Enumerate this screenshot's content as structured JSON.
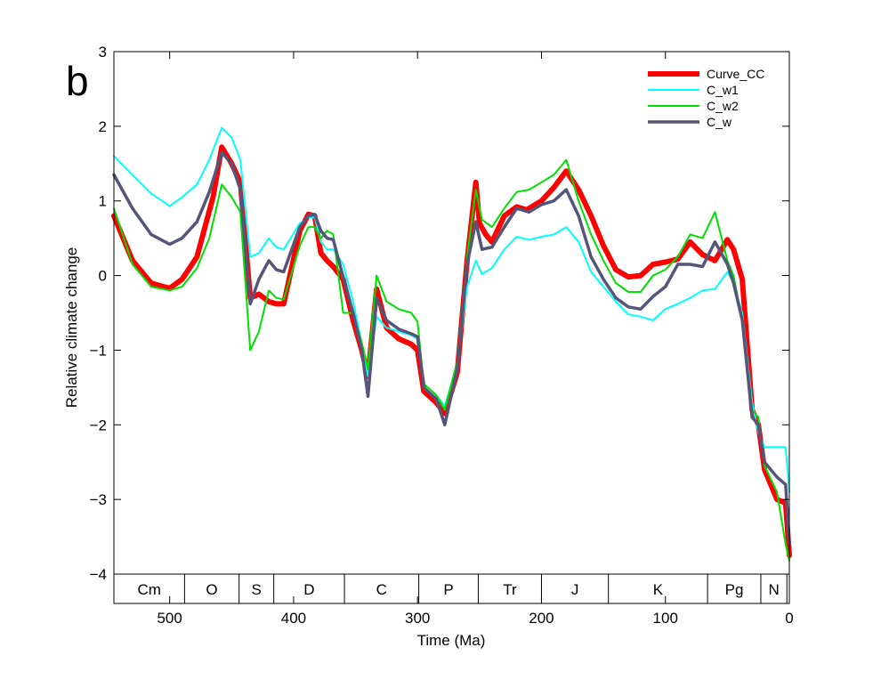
{
  "panel_label": "b",
  "chart_data": {
    "type": "line",
    "xlabel": "Time (Ma)",
    "ylabel": "Relative climate change",
    "xlim": [
      545,
      0
    ],
    "ylim": [
      -4,
      3
    ],
    "x_reversed": true,
    "x_ticks": [
      500,
      400,
      300,
      200,
      100,
      0
    ],
    "y_ticks": [
      -4,
      -3,
      -2,
      -1,
      0,
      1,
      2,
      3
    ],
    "y_tick_labels": [
      "−4",
      "−3",
      "−2",
      "−1",
      "0",
      "1",
      "2",
      "3"
    ],
    "grid": false,
    "legend_position": "top-right",
    "periods": [
      {
        "label": "Cm",
        "start": 545,
        "end": 488
      },
      {
        "label": "O",
        "start": 488,
        "end": 444
      },
      {
        "label": "S",
        "start": 444,
        "end": 416
      },
      {
        "label": "D",
        "start": 416,
        "end": 359
      },
      {
        "label": "C",
        "start": 359,
        "end": 299
      },
      {
        "label": "P",
        "start": 299,
        "end": 251
      },
      {
        "label": "Tr",
        "start": 251,
        "end": 200
      },
      {
        "label": "J",
        "start": 200,
        "end": 146
      },
      {
        "label": "K",
        "start": 146,
        "end": 66
      },
      {
        "label": "Pg",
        "start": 66,
        "end": 23
      },
      {
        "label": "N",
        "start": 23,
        "end": 2
      }
    ],
    "series": [
      {
        "name": "Curve_CC",
        "color": "#ff0000",
        "width": 6,
        "x": [
          545,
          530,
          515,
          505,
          500,
          490,
          478,
          465,
          458,
          450,
          443,
          435,
          428,
          420,
          414,
          408,
          395,
          388,
          383,
          378,
          373,
          368,
          360,
          352,
          345,
          340,
          333,
          325,
          315,
          305,
          300,
          295,
          285,
          278,
          268,
          260,
          253,
          250,
          245,
          240,
          230,
          220,
          212,
          200,
          190,
          180,
          170,
          160,
          150,
          140,
          130,
          120,
          110,
          100,
          90,
          80,
          70,
          60,
          50,
          45,
          38,
          30,
          25,
          20,
          10,
          3,
          0
        ],
        "y": [
          0.8,
          0.2,
          -0.1,
          -0.15,
          -0.17,
          -0.05,
          0.25,
          1.05,
          1.72,
          1.5,
          1.25,
          -0.3,
          -0.25,
          -0.35,
          -0.38,
          -0.38,
          0.6,
          0.82,
          0.8,
          0.3,
          0.2,
          0.12,
          -0.05,
          -0.6,
          -1.0,
          -1.35,
          -0.18,
          -0.7,
          -0.85,
          -0.92,
          -1.0,
          -1.55,
          -1.7,
          -1.85,
          -1.3,
          0.2,
          1.25,
          0.7,
          0.55,
          0.45,
          0.8,
          0.92,
          0.88,
          1.0,
          1.18,
          1.4,
          1.15,
          0.8,
          0.4,
          0.08,
          -0.02,
          0.0,
          0.15,
          0.18,
          0.22,
          0.45,
          0.28,
          0.2,
          0.48,
          0.35,
          -0.05,
          -1.8,
          -2.0,
          -2.6,
          -3.0,
          -3.05,
          -3.75
        ]
      },
      {
        "name": "C_w1",
        "color": "#00ffff",
        "width": 2,
        "x": [
          545,
          530,
          515,
          500,
          490,
          478,
          468,
          458,
          450,
          443,
          435,
          428,
          420,
          414,
          408,
          395,
          388,
          383,
          378,
          373,
          368,
          360,
          352,
          345,
          340,
          333,
          325,
          315,
          305,
          300,
          295,
          285,
          278,
          268,
          260,
          253,
          248,
          240,
          230,
          220,
          210,
          200,
          190,
          180,
          170,
          160,
          150,
          140,
          130,
          120,
          110,
          100,
          90,
          80,
          70,
          60,
          50,
          45,
          38,
          30,
          25,
          20,
          10,
          3,
          0
        ],
        "y": [
          1.6,
          1.35,
          1.1,
          0.93,
          1.05,
          1.22,
          1.55,
          1.98,
          1.85,
          1.55,
          0.25,
          0.3,
          0.5,
          0.38,
          0.35,
          0.7,
          0.78,
          0.78,
          0.45,
          0.35,
          0.35,
          0.15,
          -0.35,
          -0.9,
          -1.35,
          -0.55,
          -0.7,
          -0.75,
          -0.8,
          -0.85,
          -1.45,
          -1.6,
          -1.75,
          -1.2,
          -0.15,
          0.2,
          0.02,
          0.1,
          0.35,
          0.52,
          0.48,
          0.52,
          0.55,
          0.65,
          0.45,
          0.05,
          -0.15,
          -0.35,
          -0.52,
          -0.55,
          -0.6,
          -0.45,
          -0.38,
          -0.3,
          -0.2,
          -0.18,
          0.05,
          -0.1,
          -0.5,
          -1.7,
          -2.1,
          -2.3,
          -2.3,
          -2.3,
          -2.9
        ]
      },
      {
        "name": "C_w2",
        "color": "#00e000",
        "width": 2,
        "x": [
          545,
          530,
          515,
          500,
          490,
          478,
          468,
          458,
          450,
          443,
          435,
          428,
          420,
          414,
          408,
          395,
          388,
          383,
          378,
          373,
          368,
          360,
          352,
          345,
          340,
          333,
          325,
          315,
          305,
          300,
          295,
          285,
          278,
          268,
          260,
          253,
          248,
          240,
          230,
          220,
          210,
          200,
          190,
          180,
          170,
          160,
          150,
          140,
          130,
          120,
          110,
          100,
          90,
          80,
          70,
          60,
          50,
          45,
          38,
          30,
          25,
          20,
          10,
          3,
          0
        ],
        "y": [
          0.9,
          0.15,
          -0.15,
          -0.2,
          -0.15,
          0.1,
          0.5,
          1.22,
          1.05,
          0.85,
          -1.0,
          -0.75,
          -0.2,
          -0.3,
          -0.32,
          0.4,
          0.65,
          0.65,
          0.5,
          0.6,
          0.55,
          -0.5,
          -0.5,
          -0.9,
          -1.25,
          0.0,
          -0.35,
          -0.45,
          -0.5,
          -0.62,
          -1.45,
          -1.6,
          -1.8,
          -1.15,
          0.25,
          1.15,
          0.75,
          0.65,
          0.9,
          1.12,
          1.15,
          1.25,
          1.35,
          1.55,
          1.0,
          0.55,
          0.2,
          -0.1,
          -0.22,
          -0.22,
          0.0,
          0.08,
          0.25,
          0.55,
          0.5,
          0.85,
          0.2,
          0.0,
          -0.6,
          -1.8,
          -1.9,
          -2.55,
          -2.9,
          -3.6,
          -3.82
        ]
      },
      {
        "name": "C_w",
        "color": "#55557a",
        "width": 3.5,
        "x": [
          545,
          530,
          515,
          500,
          490,
          478,
          468,
          458,
          450,
          443,
          435,
          428,
          420,
          414,
          408,
          395,
          388,
          383,
          378,
          373,
          368,
          360,
          352,
          345,
          340,
          333,
          325,
          315,
          305,
          300,
          295,
          285,
          278,
          268,
          260,
          253,
          248,
          240,
          230,
          220,
          210,
          200,
          190,
          180,
          170,
          160,
          150,
          140,
          130,
          120,
          110,
          100,
          90,
          80,
          70,
          60,
          50,
          45,
          38,
          30,
          25,
          20,
          10,
          3,
          0
        ],
        "y": [
          1.35,
          0.9,
          0.55,
          0.42,
          0.5,
          0.72,
          1.12,
          1.65,
          1.5,
          1.15,
          -0.38,
          -0.05,
          0.2,
          0.08,
          0.05,
          0.65,
          0.8,
          0.82,
          0.6,
          0.5,
          0.48,
          -0.02,
          -0.5,
          -1.0,
          -1.62,
          -0.3,
          -0.6,
          -0.72,
          -0.78,
          -0.82,
          -1.5,
          -1.65,
          -2.0,
          -1.25,
          0.15,
          0.72,
          0.35,
          0.38,
          0.65,
          0.9,
          0.85,
          0.95,
          1.0,
          1.15,
          0.8,
          0.25,
          -0.05,
          -0.3,
          -0.42,
          -0.45,
          -0.28,
          -0.15,
          0.15,
          0.15,
          0.12,
          0.45,
          0.15,
          -0.1,
          -0.6,
          -1.9,
          -2.0,
          -2.5,
          -2.7,
          -2.8,
          -3.6
        ]
      }
    ]
  }
}
